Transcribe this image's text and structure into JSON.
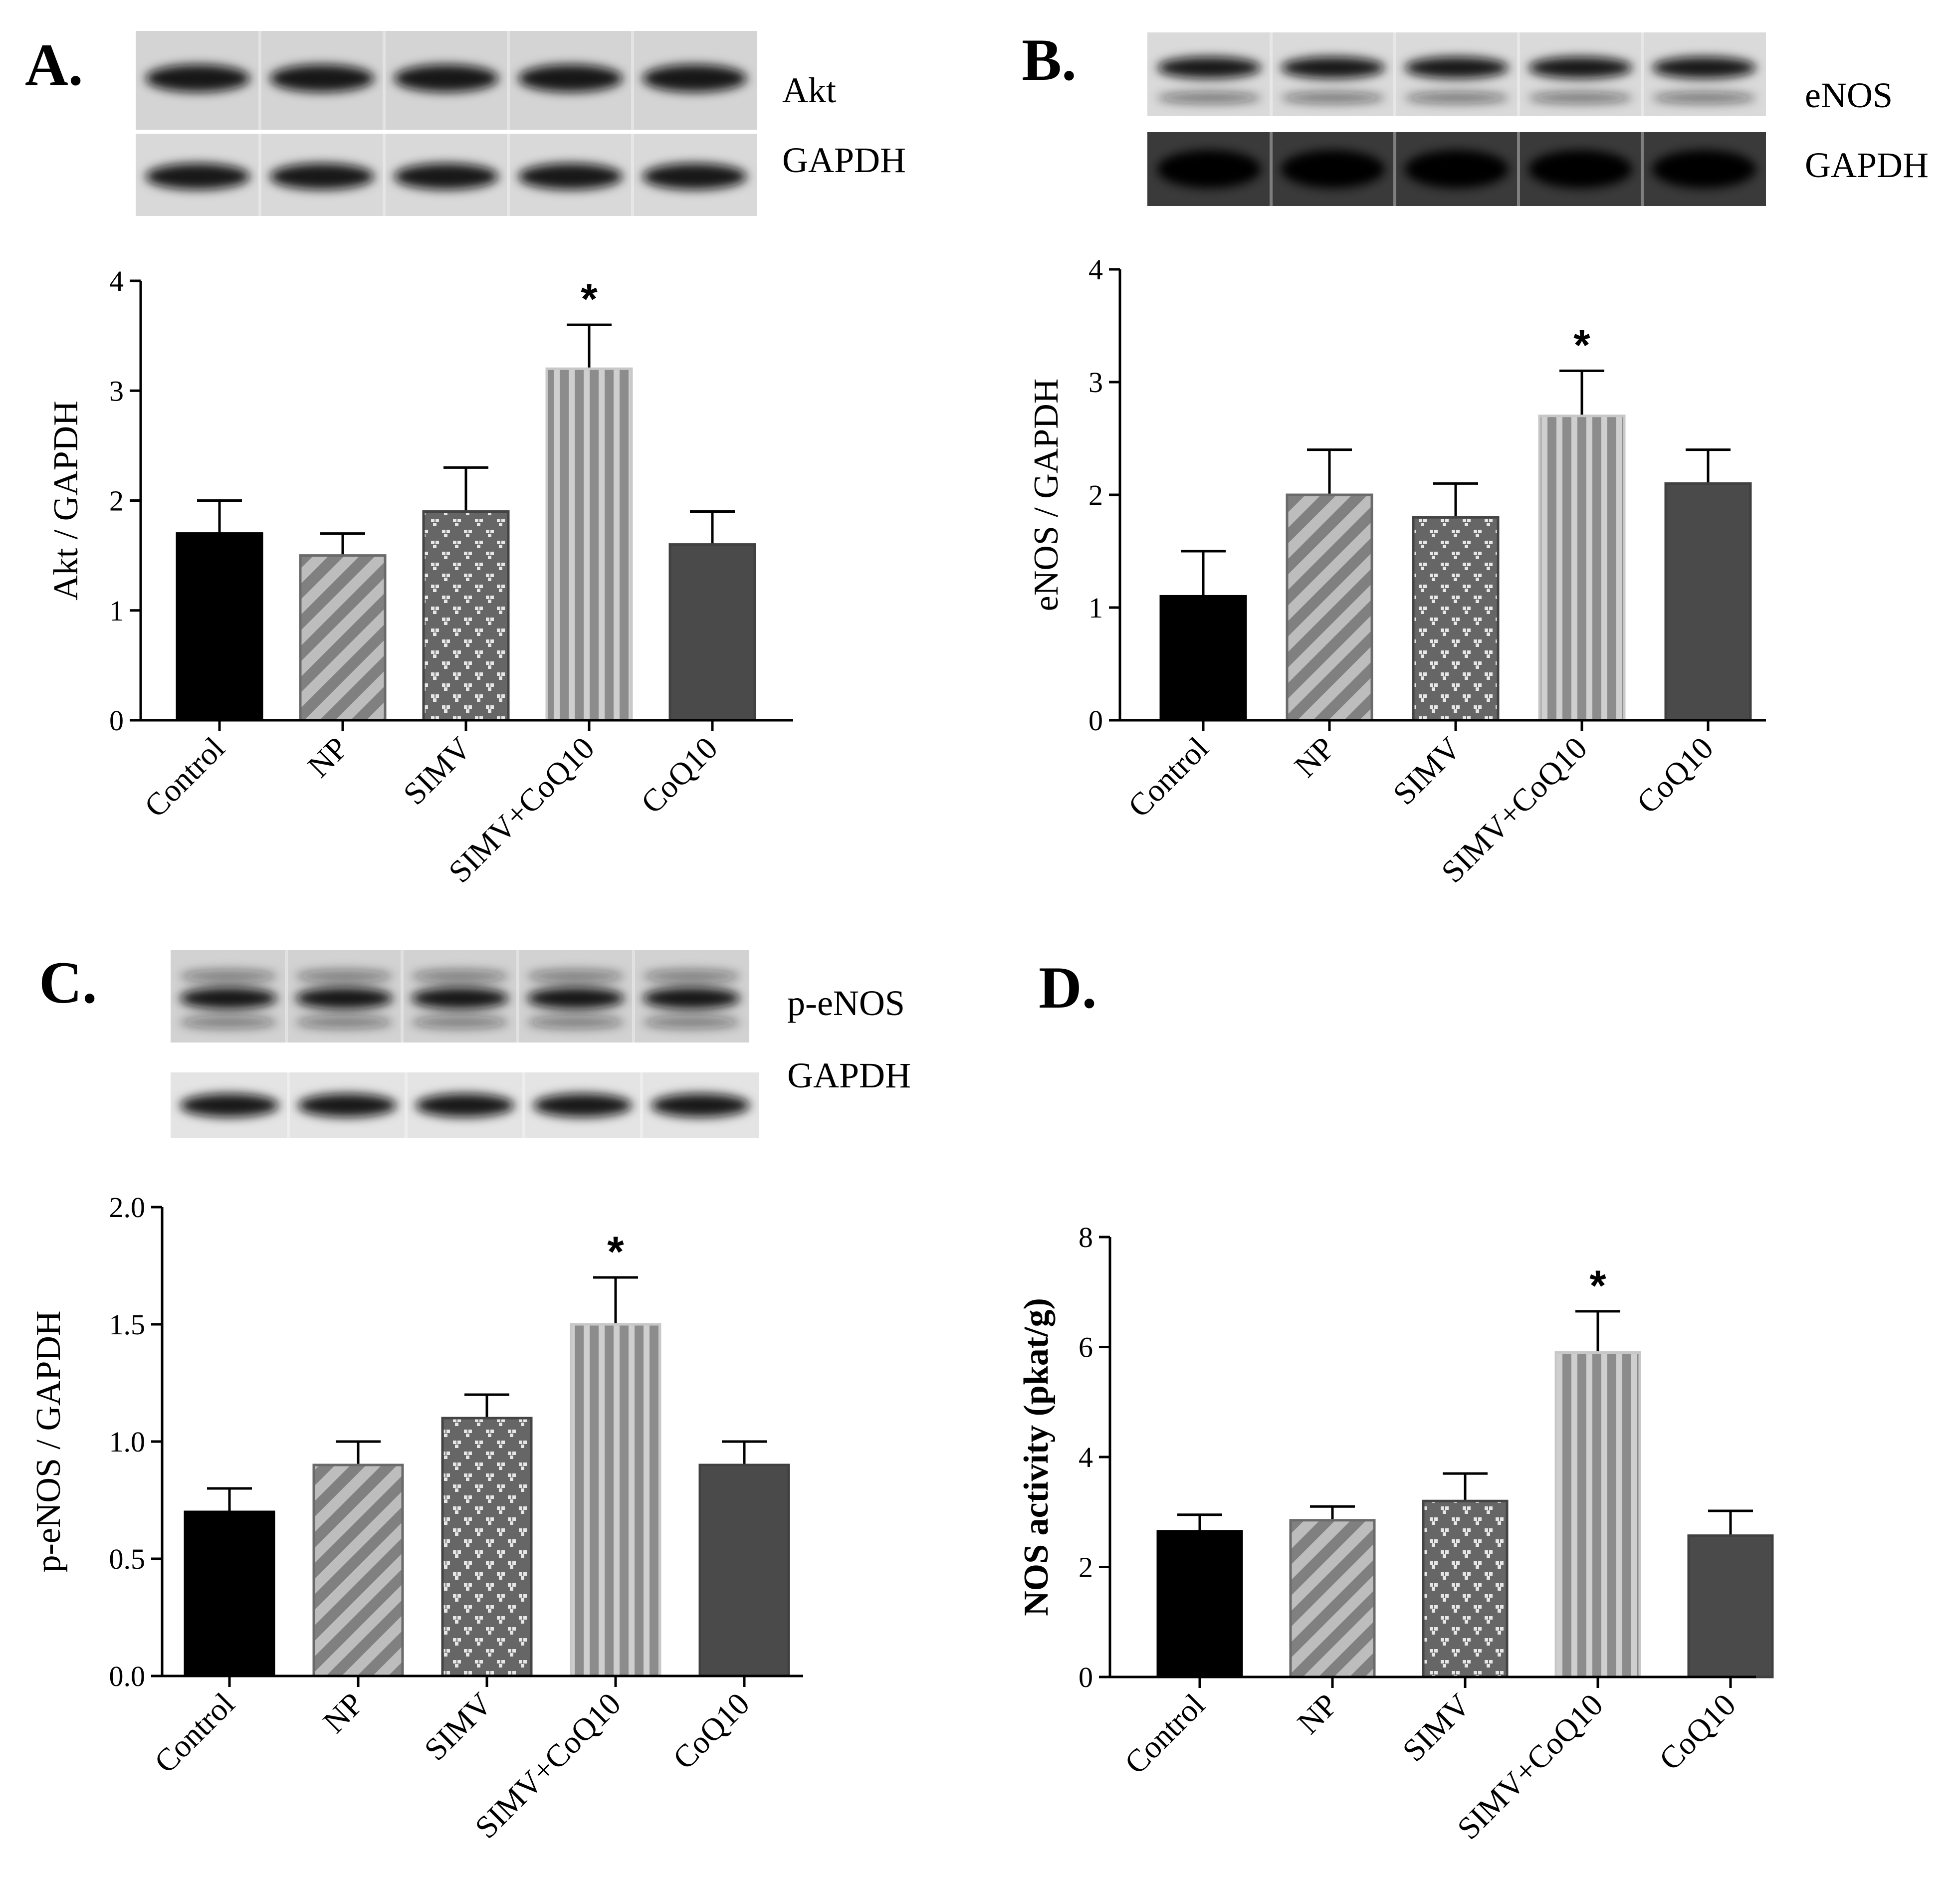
{
  "figure": {
    "panels": [
      {
        "letter": "A.",
        "blot_labels": [
          "Akt",
          "GAPDH"
        ],
        "ylabel": "Akt / GAPDH",
        "ylabel_bold": false,
        "ytick_labels": [
          "0",
          "1",
          "2",
          "3",
          "4"
        ],
        "significance": "*"
      },
      {
        "letter": "B.",
        "blot_labels": [
          "eNOS",
          "GAPDH"
        ],
        "ylabel": "eNOS / GAPDH",
        "ylabel_bold": false,
        "ytick_labels": [
          "0",
          "1",
          "2",
          "3",
          "4"
        ],
        "significance": "*"
      },
      {
        "letter": "C.",
        "blot_labels": [
          "p-eNOS",
          "GAPDH"
        ],
        "ylabel": "p-eNOS / GAPDH",
        "ylabel_bold": false,
        "ytick_labels": [
          "0.0",
          "0.5",
          "1.0",
          "1.5",
          "2.0"
        ],
        "significance": "*"
      },
      {
        "letter": "D.",
        "blot_labels": [],
        "ylabel": "NOS activity (pkat/g)",
        "ylabel_bold": true,
        "ytick_labels": [
          "0",
          "2",
          "4",
          "6",
          "8"
        ],
        "significance": "*"
      }
    ],
    "colors": {
      "control": "#000000",
      "np_base": "#808080",
      "np_stripe": "#bdbdbd",
      "simv_base": "#666666",
      "simv_dot": "#e6e6e6",
      "simv_coq10_base": "#8c8c8c",
      "simv_coq10_stripe": "#cfcfcf",
      "coq10": "#4a4a4a"
    }
  },
  "chart_data": [
    {
      "type": "bar",
      "title": "",
      "ylabel": "Akt / GAPDH",
      "categories": [
        "Control",
        "NP",
        "SIMV",
        "SIMV+CoQ10",
        "CoQ10"
      ],
      "values": [
        1.7,
        1.5,
        1.9,
        3.2,
        1.6
      ],
      "errors": [
        0.3,
        0.2,
        0.4,
        0.4,
        0.3
      ],
      "ylim": [
        0,
        4
      ],
      "significant": [
        false,
        false,
        false,
        true,
        false
      ]
    },
    {
      "type": "bar",
      "title": "",
      "ylabel": "eNOS / GAPDH",
      "categories": [
        "Control",
        "NP",
        "SIMV",
        "SIMV+CoQ10",
        "CoQ10"
      ],
      "values": [
        1.1,
        2.0,
        1.8,
        2.7,
        2.1
      ],
      "errors": [
        0.4,
        0.4,
        0.3,
        0.4,
        0.3
      ],
      "ylim": [
        0,
        4
      ],
      "significant": [
        false,
        false,
        false,
        true,
        false
      ]
    },
    {
      "type": "bar",
      "title": "",
      "ylabel": "p-eNOS / GAPDH",
      "categories": [
        "Control",
        "NP",
        "SIMV",
        "SIMV+CoQ10",
        "CoQ10"
      ],
      "values": [
        0.7,
        0.9,
        1.1,
        1.5,
        0.9
      ],
      "errors": [
        0.1,
        0.1,
        0.1,
        0.2,
        0.1
      ],
      "ylim": [
        0,
        2.0
      ],
      "significant": [
        false,
        false,
        false,
        true,
        false
      ]
    },
    {
      "type": "bar",
      "title": "",
      "ylabel": "NOS activity (pkat/g)",
      "categories": [
        "Control",
        "NP",
        "SIMV",
        "SIMV+CoQ10",
        "CoQ10"
      ],
      "values": [
        2.65,
        2.85,
        3.2,
        5.9,
        2.57
      ],
      "errors": [
        0.3,
        0.25,
        0.5,
        0.75,
        0.45
      ],
      "ylim": [
        0,
        8
      ],
      "significant": [
        false,
        false,
        false,
        true,
        false
      ]
    }
  ]
}
